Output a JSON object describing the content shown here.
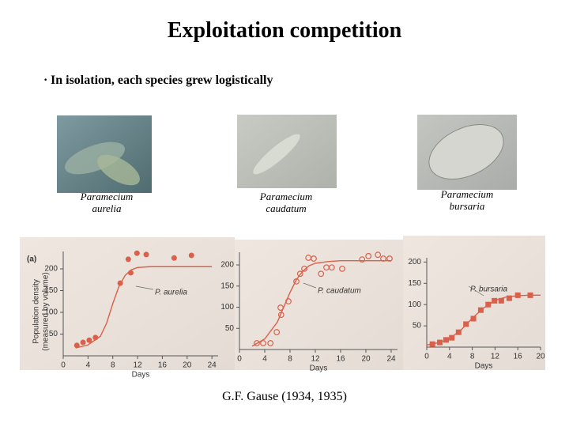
{
  "title": "Exploitation competition",
  "bullet": "In isolation, each species grew logistically",
  "captions": [
    "Paramecium aurelia",
    "Paramecium caudatum",
    "Paramecium bursaria"
  ],
  "citation": "G.F. Gause (1934, 1935)",
  "chart_data": [
    {
      "type": "scatter",
      "panel_label": "(a)",
      "ylabel": [
        "Population density",
        "(measured by volume)"
      ],
      "xlabel": "Days",
      "annotation": "P. aurelia",
      "xlim": [
        0,
        25
      ],
      "ylim": [
        0,
        240
      ],
      "xticks": [
        0,
        4,
        8,
        12,
        16,
        20,
        24
      ],
      "yticks": [
        50,
        100,
        150,
        200
      ],
      "marker": "circle",
      "color": "#d9604a",
      "x": [
        2.2,
        3.2,
        4.2,
        5.2,
        9.2,
        10.5,
        10.9,
        11.9,
        13.4,
        17.9,
        20.7
      ],
      "values": [
        24,
        31,
        36,
        42,
        167,
        222,
        191,
        236,
        233,
        225,
        231
      ],
      "fit": {
        "x": [
          2,
          4,
          6,
          7,
          8,
          9,
          10,
          11,
          12,
          14,
          16,
          18,
          20,
          22,
          24
        ],
        "values": [
          18,
          25,
          45,
          75,
          120,
          160,
          185,
          198,
          203,
          205,
          205,
          205,
          205,
          205,
          205
        ]
      }
    },
    {
      "type": "scatter",
      "xlabel": "Days",
      "annotation": "P. caudatum",
      "xlim": [
        0,
        25
      ],
      "ylim": [
        0,
        230
      ],
      "xticks": [
        0,
        4,
        8,
        12,
        16,
        20,
        24
      ],
      "yticks": [
        50,
        100,
        150,
        200
      ],
      "marker": "open-circle",
      "color": "#d9604a",
      "x": [
        2.75,
        3.75,
        4.9,
        5.9,
        6.5,
        6.6,
        7.75,
        9,
        9.6,
        10.25,
        10.9,
        11.75,
        12.9,
        13.75,
        14.6,
        16.25,
        19.4,
        20.4,
        21.9,
        22.75,
        23.75
      ],
      "values": [
        15,
        15,
        15,
        41,
        99,
        82,
        114,
        161,
        179,
        191,
        217,
        215,
        179,
        194,
        194,
        191,
        213,
        221,
        224,
        215,
        215
      ],
      "fit": {
        "x": [
          2,
          4,
          6,
          7,
          8,
          9,
          10,
          11,
          12,
          14,
          16,
          18,
          20,
          22,
          24
        ],
        "values": [
          8,
          25,
          65,
          100,
          135,
          165,
          185,
          198,
          204,
          208,
          210,
          210,
          210,
          210,
          210
        ]
      }
    },
    {
      "type": "scatter",
      "xlabel": "Days",
      "annotation": "P. bursaria",
      "xlim": [
        0,
        20
      ],
      "ylim": [
        0,
        210
      ],
      "xticks": [
        0,
        4,
        8,
        12,
        16,
        20
      ],
      "yticks": [
        50,
        100,
        150,
        200
      ],
      "marker": "square",
      "color": "#d9604a",
      "x": [
        1,
        2.3,
        3.4,
        4.4,
        5.6,
        6.9,
        8.2,
        9.5,
        10.8,
        11.9,
        13.1,
        14.5,
        16,
        18.2
      ],
      "values": [
        7,
        11,
        17,
        22,
        35,
        54,
        67,
        87,
        100,
        109,
        109,
        115,
        122,
        122
      ],
      "fit": {
        "x": [
          0,
          2,
          4,
          6,
          8,
          10,
          12,
          14,
          16,
          18,
          20
        ],
        "values": [
          5,
          10,
          20,
          40,
          68,
          92,
          110,
          118,
          121,
          122,
          122
        ]
      }
    }
  ]
}
